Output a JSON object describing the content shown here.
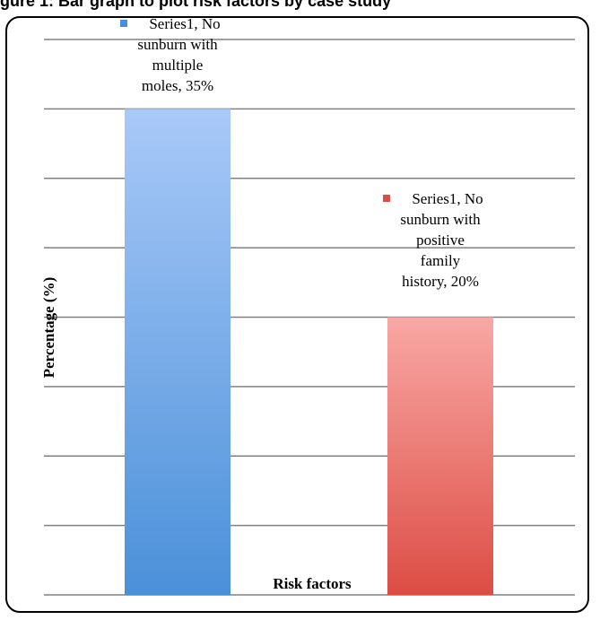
{
  "page": {
    "title": "gure 1: Bar graph to plot risk factors by case study"
  },
  "colors": {
    "series1_blue_top": "#a9c9f8",
    "series1_blue_bottom": "#4a90d9",
    "series1_red_top": "#f9a8a5",
    "series1_red_bottom": "#dc4d44",
    "gridline": "#808080"
  },
  "chart_data": {
    "type": "bar",
    "title": "",
    "xlabel": "Risk factors",
    "ylabel": "Percentage (%)",
    "ylim": [
      0,
      40
    ],
    "grid": true,
    "categories": [
      "No sunburn with multiple moles",
      "No sunburn with positive family history"
    ],
    "series": [
      {
        "name": "Series1",
        "values": [
          35,
          20
        ],
        "colors": [
          "blue",
          "red"
        ]
      }
    ],
    "data_labels": [
      [
        "Series1, No",
        "sunburn with",
        "multiple",
        "moles, 35%"
      ],
      [
        "Series1, No",
        "sunburn with",
        "positive",
        "family",
        "history, 20%"
      ]
    ]
  }
}
